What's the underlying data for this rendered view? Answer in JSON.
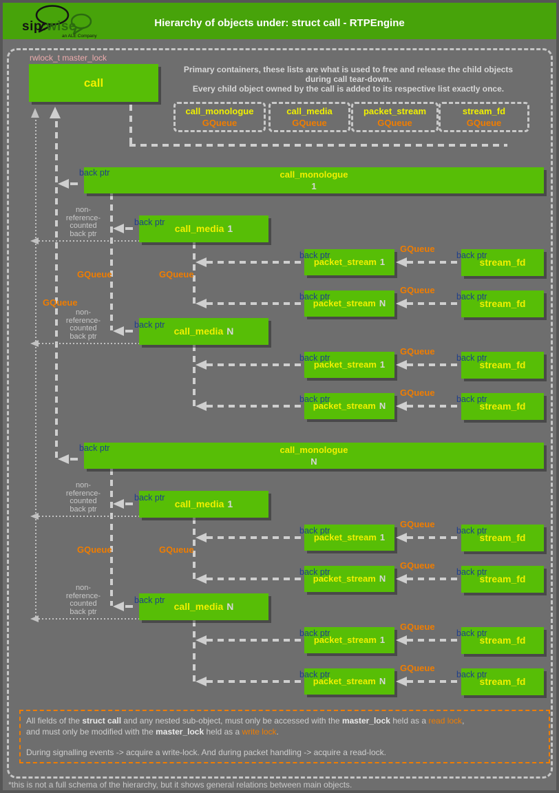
{
  "header": {
    "title": "Hierarchy of objects under: struct call - RTPEngine",
    "logo": {
      "sip": "sip:",
      "wise": "wise",
      "tagline": "an ALE Company"
    }
  },
  "diagram": {
    "master_lock_label": "rwlock_t master_lock",
    "call_label": "call",
    "intro_lines": [
      "Primary containers, these lists are what is used to free and release the child objects",
      "during call tear-down.",
      "Every child object owned by the call is added to its respective list exactly once."
    ],
    "primary_containers": [
      {
        "name": "call_monologue",
        "type": "GQueue"
      },
      {
        "name": "call_media",
        "type": "GQueue"
      },
      {
        "name": "packet_stream",
        "type": "GQueue"
      },
      {
        "name": "stream_fd",
        "type": "GQueue"
      }
    ],
    "labels": {
      "back_ptr": "back ptr",
      "gqueue": "GQueue",
      "non_ref_lines": [
        "non-",
        "reference-",
        "counted",
        "back ptr"
      ]
    },
    "groups": [
      {
        "monologue_name": "call_monologue",
        "monologue_index": "1",
        "media": [
          {
            "name": "call_media",
            "index": "1",
            "streams": [
              {
                "name": "packet_stream",
                "index": "1",
                "fd": "stream_fd"
              },
              {
                "name": "packet_stream",
                "index": "N",
                "fd": "stream_fd"
              }
            ]
          },
          {
            "name": "call_media",
            "index": "N",
            "streams": [
              {
                "name": "packet_stream",
                "index": "1",
                "fd": "stream_fd"
              },
              {
                "name": "packet_stream",
                "index": "N",
                "fd": "stream_fd"
              }
            ]
          }
        ]
      },
      {
        "monologue_name": "call_monologue",
        "monologue_index": "N",
        "media": [
          {
            "name": "call_media",
            "index": "1",
            "streams": [
              {
                "name": "packet_stream",
                "index": "1",
                "fd": "stream_fd"
              },
              {
                "name": "packet_stream",
                "index": "N",
                "fd": "stream_fd"
              }
            ]
          },
          {
            "name": "call_media",
            "index": "N",
            "streams": [
              {
                "name": "packet_stream",
                "index": "1",
                "fd": "stream_fd"
              },
              {
                "name": "packet_stream",
                "index": "N",
                "fd": "stream_fd"
              }
            ]
          }
        ]
      }
    ]
  },
  "footer": {
    "lines": [
      [
        {
          "t": "All fields of the ",
          "k": "n"
        },
        {
          "t": "struct call",
          "k": "b"
        },
        {
          "t": " and any nested sub-object, must only be accessed with the ",
          "k": "n"
        },
        {
          "t": "master_lock",
          "k": "b"
        },
        {
          "t": " held as a ",
          "k": "n"
        },
        {
          "t": "read lock",
          "k": "o"
        },
        {
          "t": ",",
          "k": "n"
        }
      ],
      [
        {
          "t": "and must only be modified with the ",
          "k": "n"
        },
        {
          "t": "master_lock",
          "k": "b"
        },
        {
          "t": " held as a ",
          "k": "n"
        },
        {
          "t": "write lock",
          "k": "o"
        },
        {
          "t": ".",
          "k": "n"
        }
      ],
      [],
      [
        {
          "t": "During signalling events -> acquire a write-lock. And during packet handling -> acquire a read-lock.",
          "k": "n"
        }
      ]
    ]
  },
  "footnote": "*this is not a full schema of the hierarchy, but it shows general relations between main objects.",
  "colors": {
    "header_green": "#47a30a",
    "box_green": "#57be06",
    "label_yellow": "#f0f000",
    "gqueue_orange": "#f07d00",
    "back_ptr_blue": "#1e3e8c",
    "master_lock_pink": "#ecabab"
  }
}
